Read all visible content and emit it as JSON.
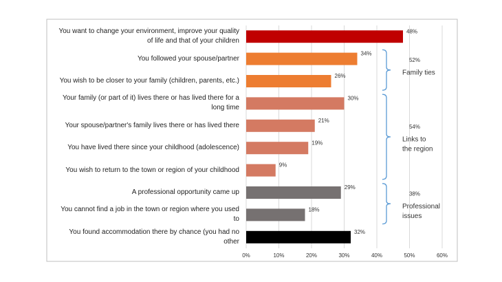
{
  "chart_data": {
    "type": "barh",
    "categories": [
      "You want to change your environment, improve your quality of life and that of your children",
      "You followed your spouse/partner",
      "You wish to be closer to your family (children, parents, etc.)",
      "Your family (or part of it) lives there or has lived there for a long time",
      "Your spouse/partner's family lives there or has lived there",
      "You have lived there since your childhood (adolescence)",
      "You wish to return to the town or region of your childhood",
      "A professional opportunity came up",
      "You cannot find a job in the town or region where you used to",
      "You found accommodation there by chance (you had no other"
    ],
    "values": [
      48,
      34,
      26,
      30,
      21,
      19,
      9,
      29,
      18,
      32
    ],
    "value_labels": [
      "48%",
      "34%",
      "26%",
      "30%",
      "21%",
      "19%",
      "9%",
      "29%",
      "18%",
      "32%"
    ],
    "colors": [
      "#c00000",
      "#ed7d31",
      "#ed7d31",
      "#d47a62",
      "#d47a62",
      "#d47a62",
      "#d47a62",
      "#767171",
      "#767171",
      "#000000"
    ],
    "xlim": [
      0,
      60
    ],
    "xticks": [
      {
        "value": 0,
        "label": "0%"
      },
      {
        "value": 10,
        "label": "10%"
      },
      {
        "value": 20,
        "label": "20%"
      },
      {
        "value": 30,
        "label": "30%"
      },
      {
        "value": 40,
        "label": "40%"
      },
      {
        "value": 50,
        "label": "50%"
      },
      {
        "value": 60,
        "label": "60%"
      }
    ],
    "grid": true,
    "groups": [
      {
        "value": 52,
        "value_label": "52%",
        "label": [
          "Family ties"
        ]
      },
      {
        "value": 54,
        "value_label": "54%",
        "label": [
          "Links to",
          "the region"
        ]
      },
      {
        "value": 38,
        "value_label": "38%",
        "label": [
          "Professional",
          "issues"
        ]
      }
    ]
  }
}
